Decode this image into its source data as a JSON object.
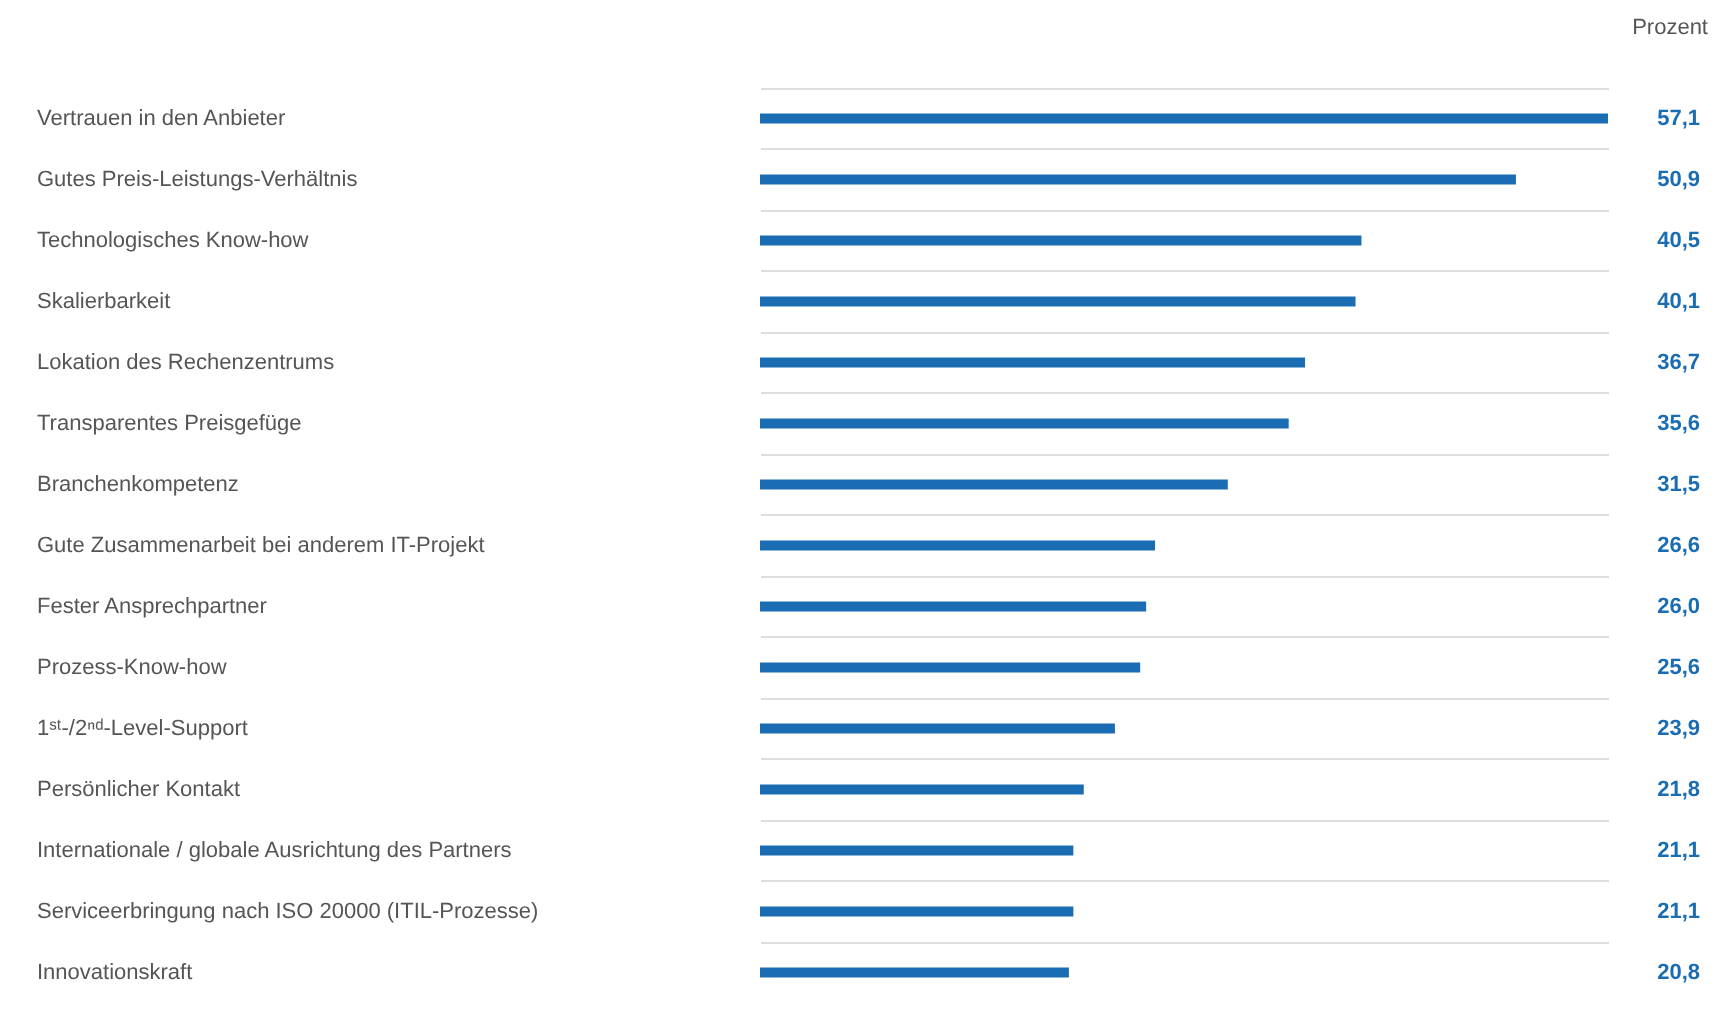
{
  "chart_data": {
    "type": "bar",
    "orientation": "horizontal",
    "annotations": [
      "Prozent"
    ],
    "categories": [
      "Vertrauen in den Anbieter",
      "Gutes Preis-Leistungs-Verhältnis",
      "Technologisches Know-how",
      "Skalierbarkeit",
      "Lokation des Rechenzentrums",
      "Transparentes Preisgefüge",
      "Branchenkompetenz",
      "Gute Zusammenarbeit bei anderem IT-Projekt",
      "Fester Ansprechpartner",
      "Prozess-Know-how",
      "1ˢᵗ-/2ⁿᵈ-Level-Support",
      "Persönlicher Kontakt",
      "Internationale / globale Ausrichtung des Partners",
      "Serviceerbringung nach ISO 20000 (ITIL-Prozesse)",
      "Innovationskraft"
    ],
    "values": [
      57.1,
      50.9,
      40.5,
      40.1,
      36.7,
      35.6,
      31.5,
      26.6,
      26.0,
      25.6,
      23.9,
      21.8,
      21.1,
      21.1,
      20.8
    ],
    "value_labels": [
      "57,1",
      "50,9",
      "40,5",
      "40,1",
      "36,7",
      "35,6",
      "31,5",
      "26,6",
      "26,0",
      "25,6",
      "23,9",
      "21,8",
      "21,1",
      "21,1",
      "20,8"
    ],
    "color": "#1b6db3",
    "grid": true
  }
}
